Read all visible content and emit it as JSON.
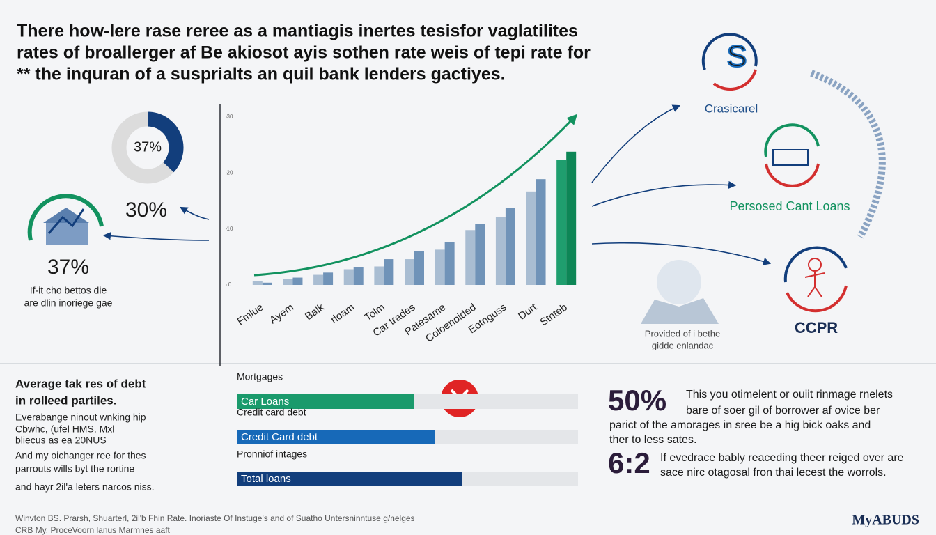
{
  "header": {
    "title_lines": [
      "There how-lere rase reree as a mantiagis inertes tesisfor vaglatilites",
      "rates of broallerger af Be akiosot ayis sothen rate weis of tepi rate for",
      "** the inquran of a susprialts an quil bank lenders gactiyes."
    ]
  },
  "chart_data": [
    {
      "type": "donut",
      "values": [
        37
      ],
      "value_labels": [
        "37%"
      ],
      "color": "#123e7c",
      "track_color": "#dcdcdc"
    },
    {
      "type": "bar",
      "categories": [
        "Fmlue",
        "Ayem",
        "Balk",
        "rloam",
        "Tolm",
        "Car trades",
        "Patesame",
        "Coloenoided",
        "Eotnguss",
        "Durt",
        "Stnteb"
      ],
      "series": [
        {
          "values": [
            0.7,
            1.1,
            1.8,
            2.8,
            3.3,
            4.6,
            6.3,
            9.8,
            12.2,
            16.7,
            22.3
          ],
          "colors": [
            "#a9bdd2",
            "#a9bdd2",
            "#a9bdd2",
            "#a9bdd2",
            "#a9bdd2",
            "#a9bdd2",
            "#a9bdd2",
            "#a9bdd2",
            "#a9bdd2",
            "#a9bdd2",
            "#1f9e6e"
          ]
        },
        {
          "values": [
            0.4,
            1.3,
            2.2,
            3.2,
            4.6,
            6.1,
            7.7,
            10.9,
            13.7,
            18.9,
            23.8
          ],
          "colors": [
            "#7093b8",
            "#7093b8",
            "#7093b8",
            "#7093b8",
            "#7093b8",
            "#7093b8",
            "#7093b8",
            "#7093b8",
            "#7093b8",
            "#7093b8",
            "#0d8656"
          ]
        }
      ],
      "ylim": [
        0,
        30
      ],
      "yticks": [
        0,
        10,
        20,
        30
      ]
    },
    {
      "type": "hbar",
      "headings": [
        "Mortgages",
        "Credit card debt",
        "Pronniof intages"
      ],
      "categories": [
        "Car Loans",
        "Credit Card debt",
        "Total loans"
      ],
      "values": [
        52,
        58,
        66
      ],
      "colors": [
        "#1a9a6c",
        "#1769b8",
        "#123e7c"
      ],
      "xlim": [
        0,
        100
      ]
    }
  ],
  "left_stats": {
    "stat_a": "30%",
    "stat_b": "37%",
    "caption_lines": [
      "If-it cho bettos die",
      "are dlin inoriege gae"
    ]
  },
  "right_items": {
    "item_1": "Crasicarel",
    "item_2": "Persosed Cant Loans",
    "item_3": "CCPR",
    "note_lines": [
      "Provided of i bethe",
      "gidde enlandac"
    ]
  },
  "bottom_left": {
    "heading_lines": [
      "Average tak res of debt",
      "in rolleed partiles."
    ],
    "body_lines": [
      "Everabange ninout wnking hip",
      "Cbwhc, (ufel HMS, Mxl",
      "bliecus as ea 20NUS",
      "And my oichanger ree for thes",
      "parrouts wills byt the rortine",
      "and hayr 2il'a leters narcos niss."
    ]
  },
  "stats": [
    {
      "figure": "50%",
      "lines": [
        "This you otimelent or ouiit rinmage rnelets",
        "bare of soer gil of borrower af ovice ber",
        "parict of the amorages in sree be a hig bick oaks and",
        "ther to less sates."
      ]
    },
    {
      "figure": "6:2",
      "lines": [
        "If evedrace bably reaceding theer reiged over are",
        "sace nirc otagosal fron thai lecest the worrols."
      ]
    }
  ],
  "footer": {
    "lines": [
      "Winvton BS. Prarsh, Shuarterl, 2il'b Fhin Rate. Inoriaste Of Instuge's and of Suatho Untersninntuse g/nelges",
      "CRB My. ProceVoorn lanus Marmnes aaft"
    ],
    "brand": "MyABUDS"
  }
}
